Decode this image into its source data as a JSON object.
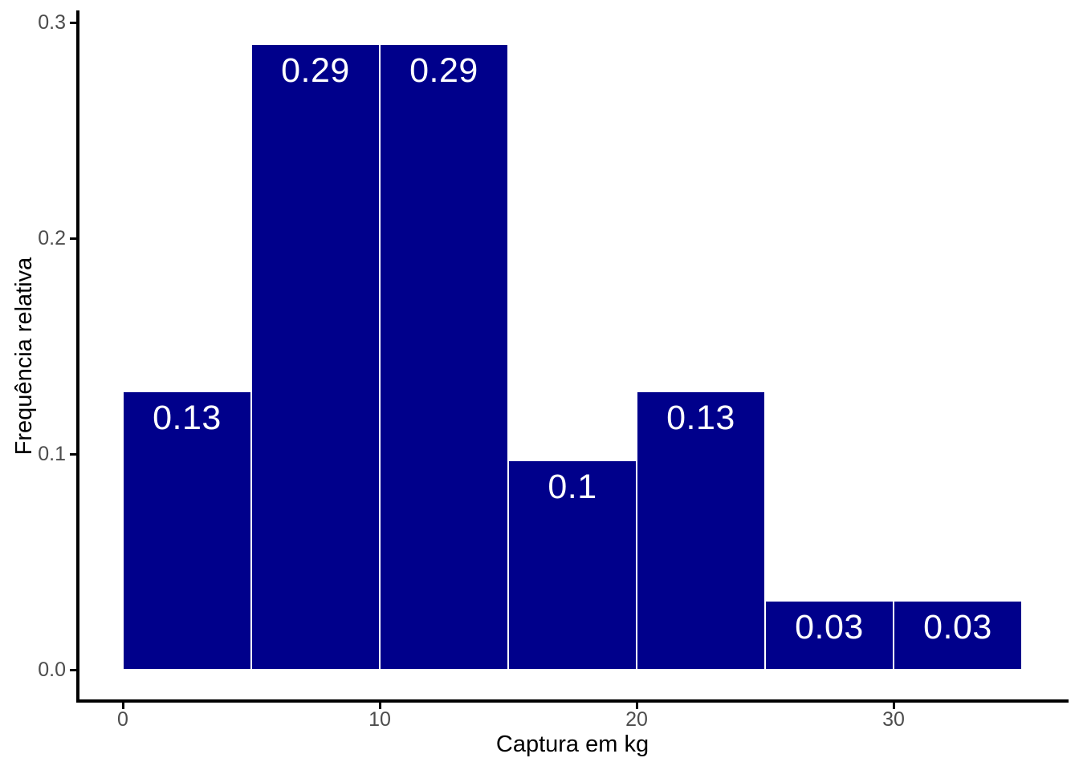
{
  "figure": {
    "background": "#FFFFFF"
  },
  "chart_data": {
    "type": "bar",
    "subtype": "histogram",
    "title": "",
    "xlabel": "Captura em kg",
    "ylabel": "Frequência relativa",
    "bin_edges": [
      0,
      5,
      10,
      15,
      20,
      25,
      30,
      35
    ],
    "values": [
      0.129,
      0.29,
      0.29,
      0.097,
      0.129,
      0.032,
      0.032
    ],
    "bar_labels": [
      "0.13",
      "0.29",
      "0.29",
      "0.1",
      "0.13",
      "0.03",
      "0.03"
    ],
    "x_ticks": [
      {
        "value": 0,
        "label": "0"
      },
      {
        "value": 10,
        "label": "10"
      },
      {
        "value": 20,
        "label": "20"
      },
      {
        "value": 30,
        "label": "30"
      }
    ],
    "y_ticks": [
      {
        "value": 0.0,
        "label": "0.0"
      },
      {
        "value": 0.1,
        "label": "0.1"
      },
      {
        "value": 0.2,
        "label": "0.2"
      },
      {
        "value": 0.3,
        "label": "0.3"
      }
    ],
    "xlim": [
      -1.75,
      36.75
    ],
    "ylim": [
      -0.0145,
      0.3045
    ],
    "grid": false,
    "legend": null,
    "colors": {
      "bar_fill": "#00008B",
      "bar_border": "#FFFFFF",
      "bar_label_text": "#FFFFFF",
      "axis_line": "#000000",
      "tick_mark": "#000000",
      "tick_label": "#4D4D4D",
      "axis_title": "#000000"
    }
  }
}
